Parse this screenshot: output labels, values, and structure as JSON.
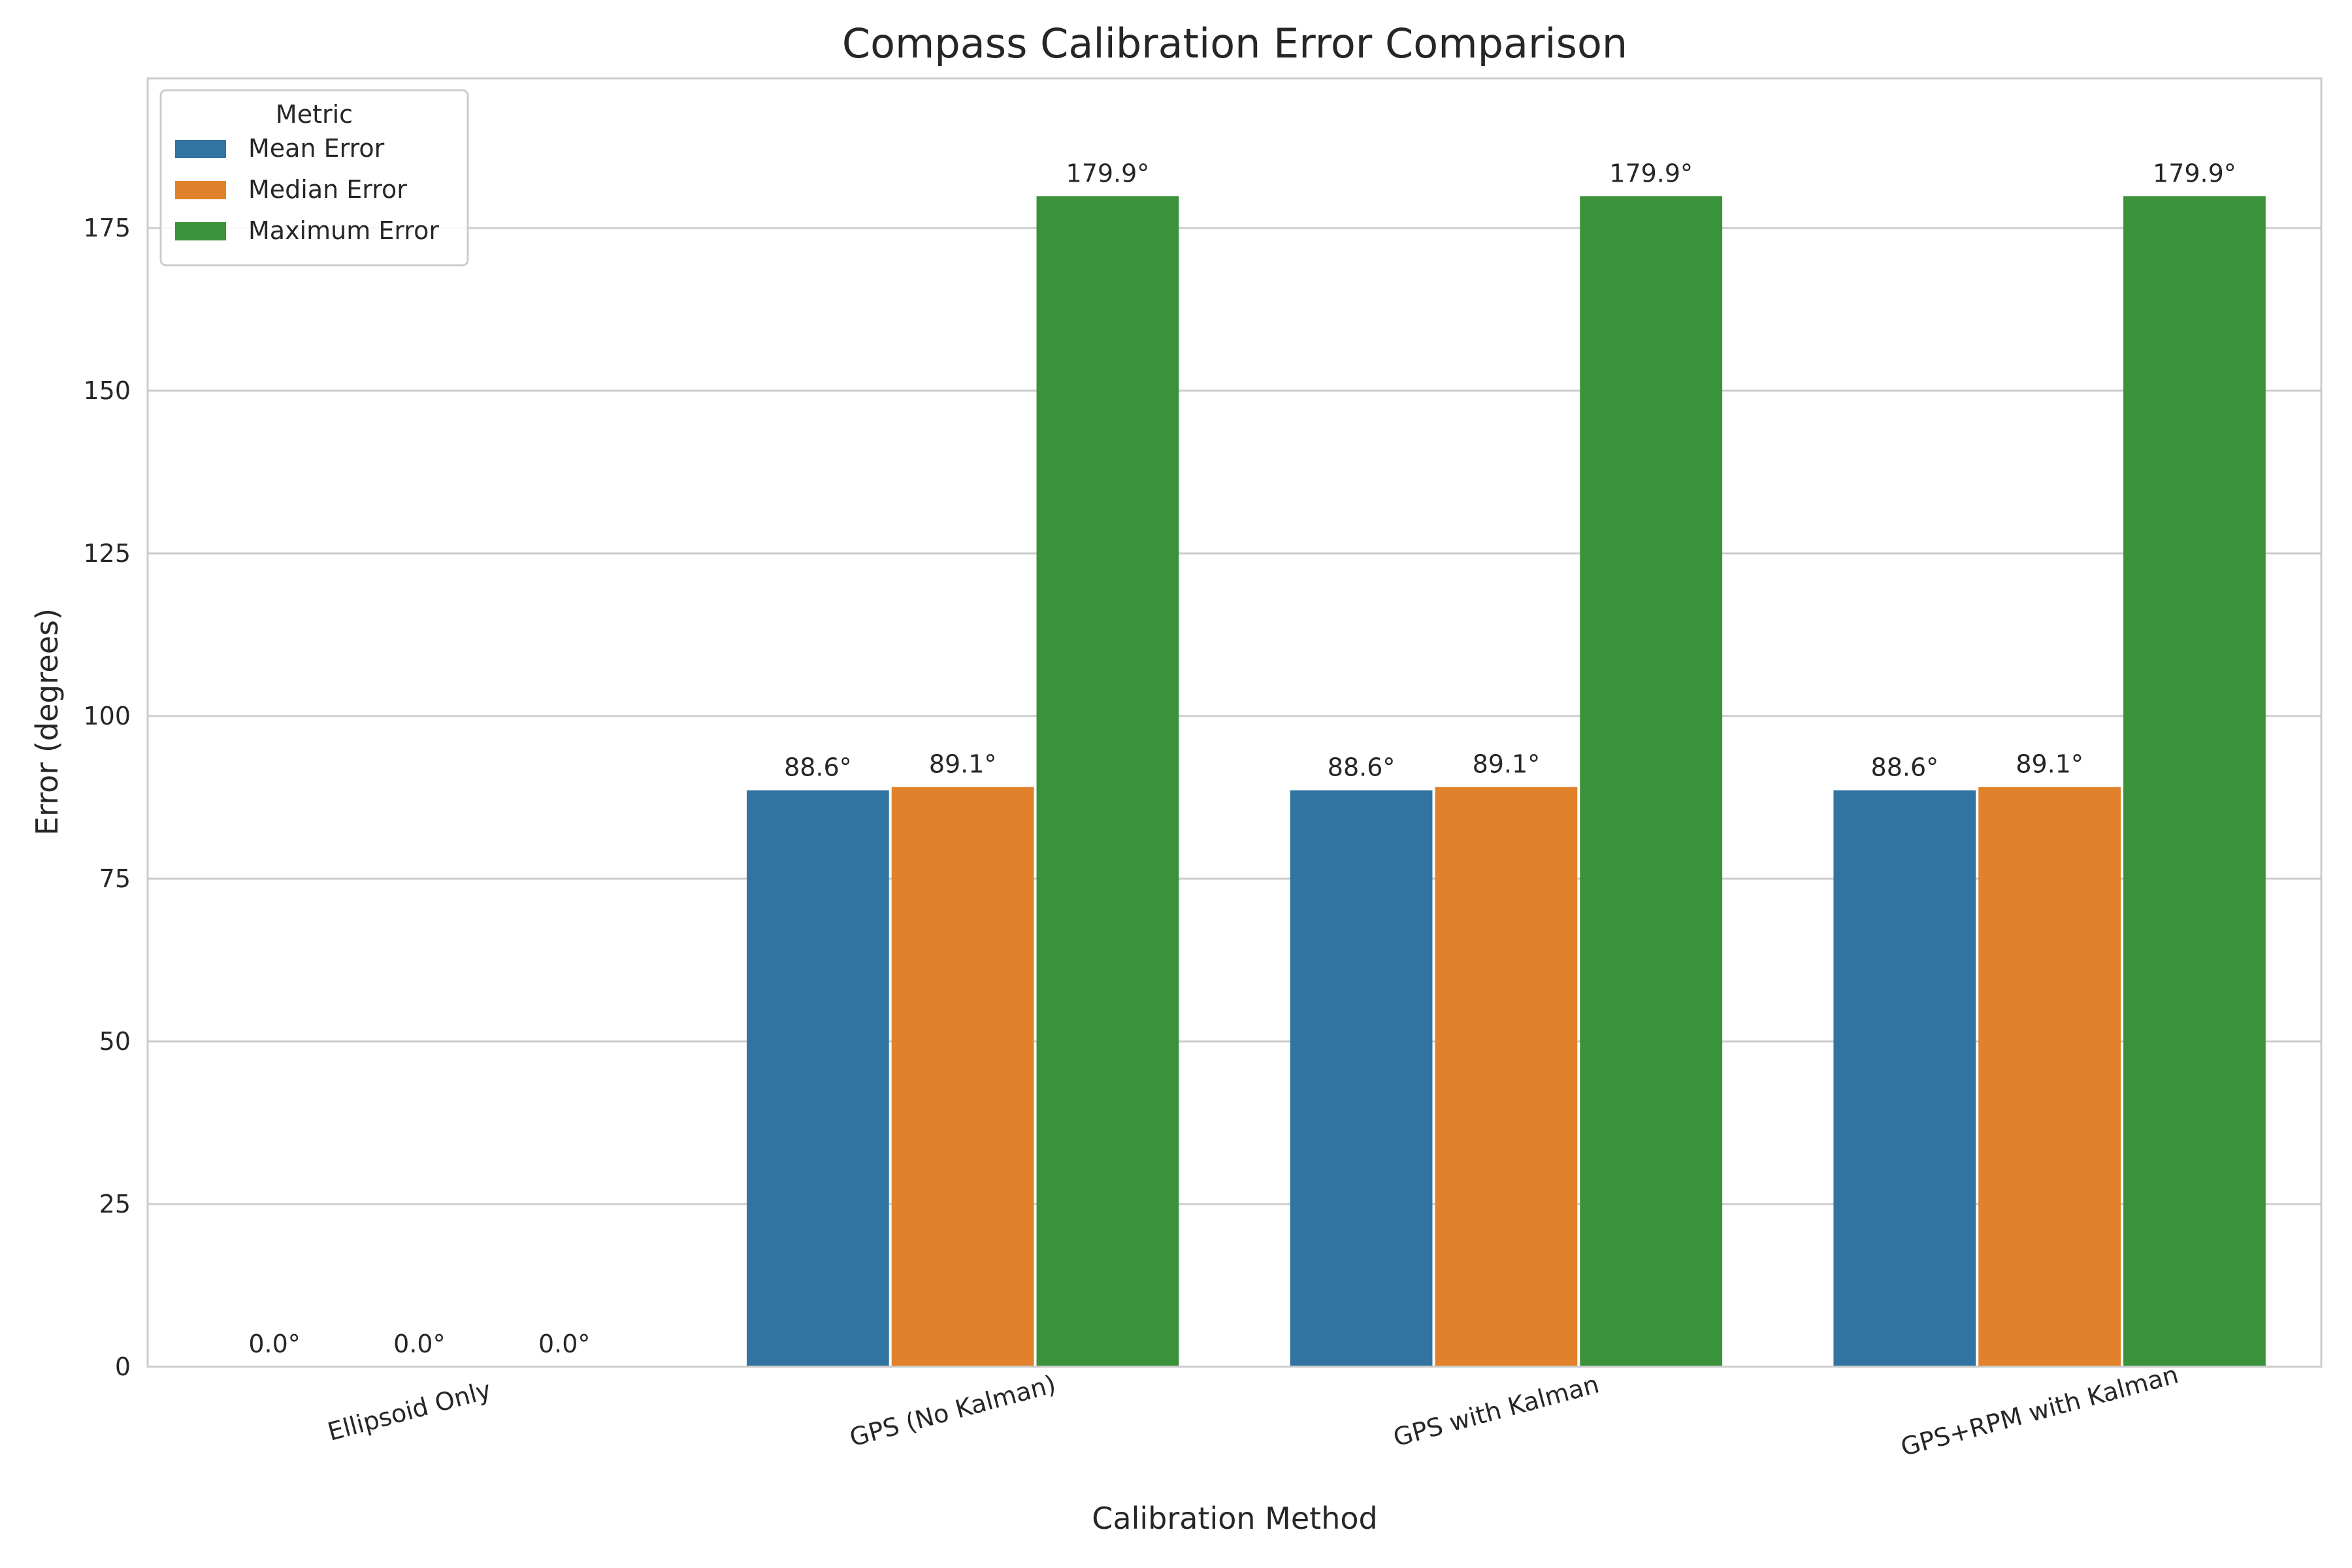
{
  "chart_data": {
    "type": "bar",
    "title": "Compass Calibration Error Comparison",
    "xlabel": "Calibration Method",
    "ylabel": "Error (degrees)",
    "categories": [
      "Ellipsoid Only",
      "GPS (No Kalman)",
      "GPS with Kalman",
      "GPS+RPM with Kalman"
    ],
    "series": [
      {
        "name": "Mean Error",
        "values": [
          0.0,
          88.6,
          88.6,
          88.6
        ],
        "color": "#3274a1"
      },
      {
        "name": "Median Error",
        "values": [
          0.0,
          89.1,
          89.1,
          89.1
        ],
        "color": "#e1812c"
      },
      {
        "name": "Maximum Error",
        "values": [
          0.0,
          179.9,
          179.9,
          179.9
        ],
        "color": "#3a923a"
      }
    ],
    "data_labels": [
      [
        "0.0°",
        "88.6°",
        "88.6°",
        "88.6°"
      ],
      [
        "0.0°",
        "89.1°",
        "89.1°",
        "89.1°"
      ],
      [
        "0.0°",
        "179.9°",
        "179.9°",
        "179.9°"
      ]
    ],
    "yticks": [
      "0",
      "25",
      "50",
      "75",
      "100",
      "125",
      "150",
      "175"
    ],
    "ylim": [
      0,
      198
    ],
    "grid": true,
    "legend": {
      "title": "Metric",
      "placement": "top-left"
    }
  }
}
